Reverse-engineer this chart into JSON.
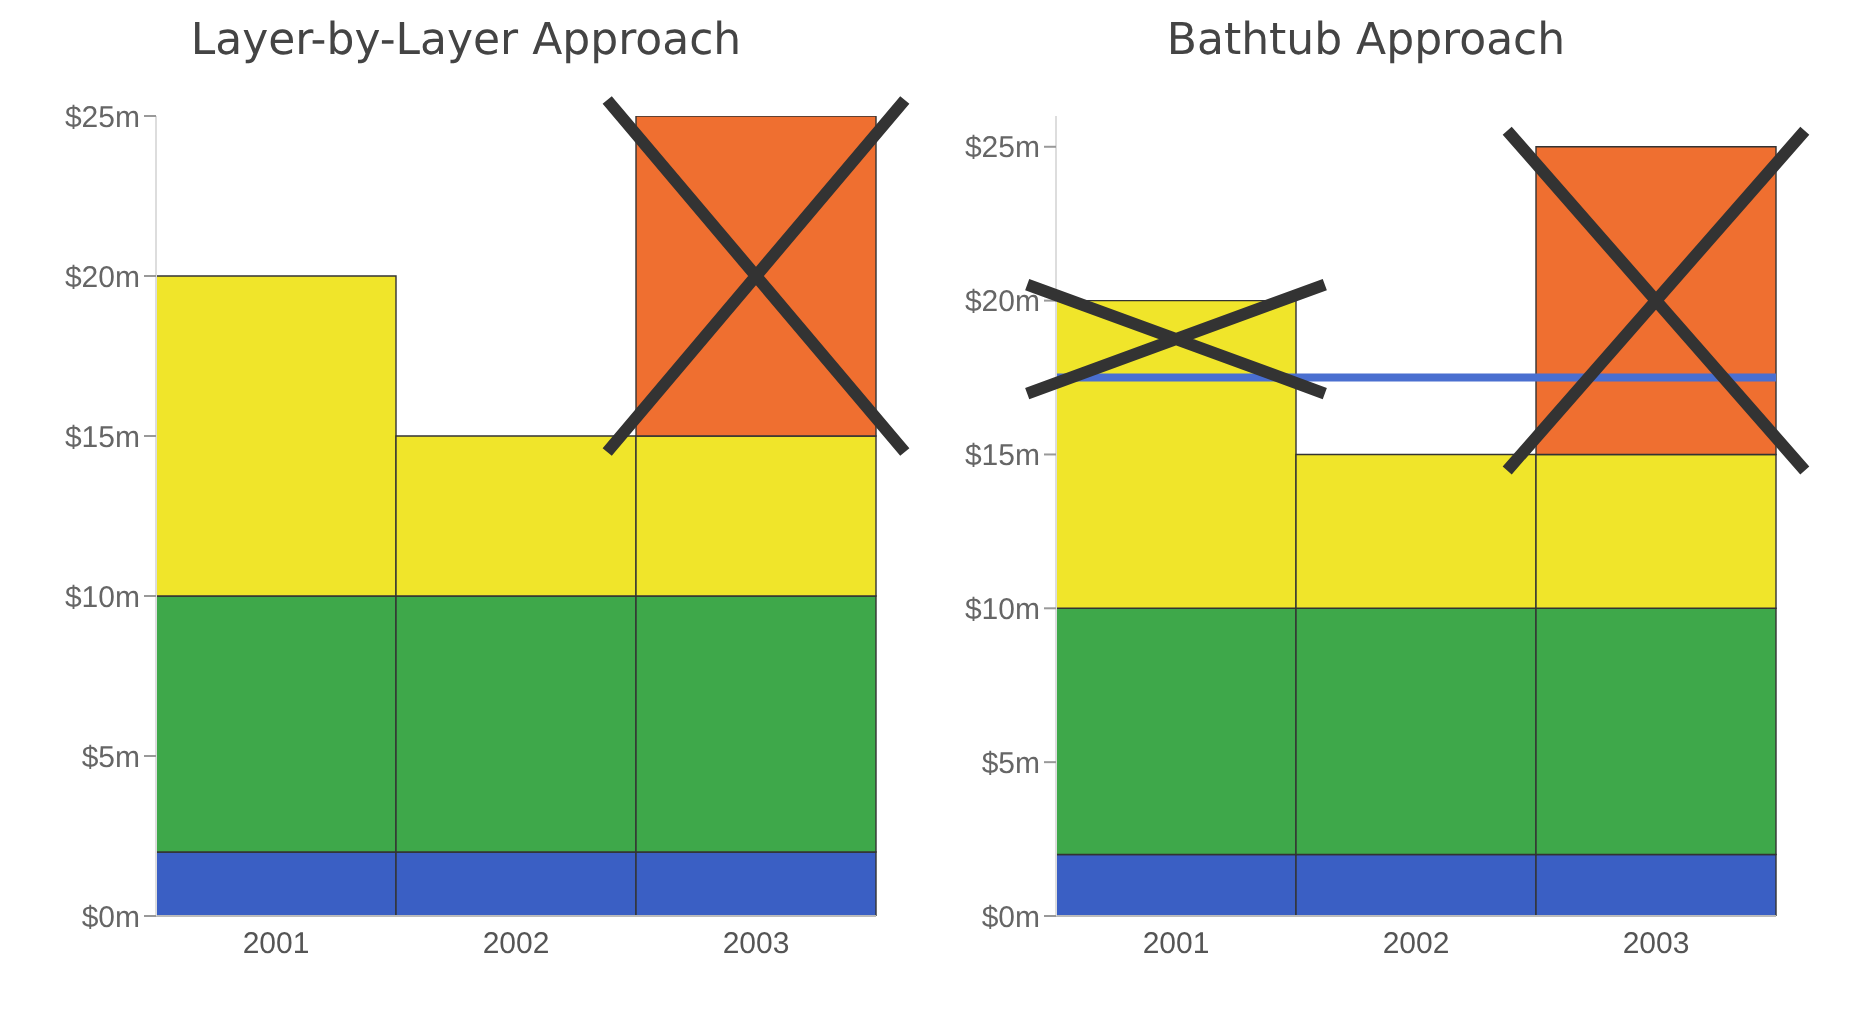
{
  "chart_data": [
    {
      "type": "bar",
      "title": "Layer-by-Layer Approach",
      "stacked": true,
      "categories": [
        "2001",
        "2002",
        "2003"
      ],
      "ylim": [
        0,
        25
      ],
      "yticks": [
        {
          "value": 0,
          "label": "$0m"
        },
        {
          "value": 5,
          "label": "$5m"
        },
        {
          "value": 10,
          "label": "$10m"
        },
        {
          "value": 15,
          "label": "$15m"
        },
        {
          "value": 20,
          "label": "$20m"
        },
        {
          "value": 25,
          "label": "$25m"
        }
      ],
      "grid": false,
      "legend": false,
      "series": [
        {
          "color": "#3a5fc4",
          "values": [
            2,
            2,
            2
          ]
        },
        {
          "color": "#3ea84a",
          "values": [
            8,
            8,
            8
          ]
        },
        {
          "color": "#f0e52a",
          "values": [
            10,
            5,
            5
          ]
        },
        {
          "color": "#ef6f30",
          "values": [
            null,
            null,
            10
          ]
        }
      ]
    },
    {
      "type": "bar",
      "title": "Bathtub Approach",
      "stacked": true,
      "categories": [
        "2001",
        "2002",
        "2003"
      ],
      "ylim": [
        0,
        26
      ],
      "yticks": [
        {
          "value": 0,
          "label": "$0m"
        },
        {
          "value": 5,
          "label": "$5m"
        },
        {
          "value": 10,
          "label": "$10m"
        },
        {
          "value": 15,
          "label": "$15m"
        },
        {
          "value": 20,
          "label": "$20m"
        },
        {
          "value": 25,
          "label": "$25m"
        }
      ],
      "grid": false,
      "legend": false,
      "ref_lines": [
        {
          "axis": "y",
          "value": 17.5,
          "color": "#4a6fd0"
        }
      ],
      "series": [
        {
          "color": "#3a5fc4",
          "values": [
            2,
            2,
            2
          ]
        },
        {
          "color": "#3ea84a",
          "values": [
            8,
            8,
            8
          ]
        },
        {
          "color": "#f0e52a",
          "values": [
            10,
            5,
            5
          ]
        },
        {
          "color": "#ef6f30",
          "values": [
            null,
            null,
            10
          ]
        }
      ]
    }
  ]
}
